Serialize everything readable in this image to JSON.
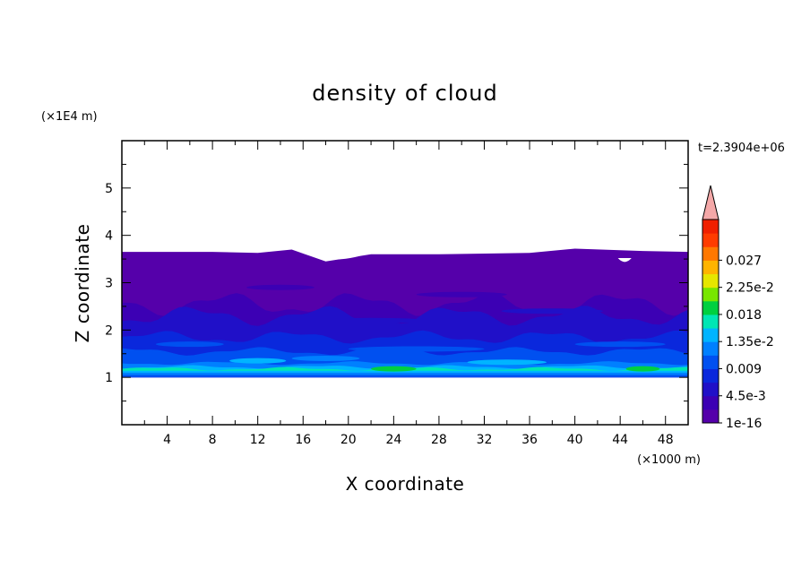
{
  "chart_data": {
    "type": "filled-contour",
    "title": "density of cloud",
    "xlabel": "X coordinate",
    "ylabel": "Z coordinate",
    "x_unit": "(×1000 m)",
    "y_unit": "(×1E4 m)",
    "time_label": "t=2.3904e+06",
    "xlim": [
      0,
      50
    ],
    "ylim": [
      0,
      6
    ],
    "x_ticks": [
      4,
      8,
      12,
      16,
      20,
      24,
      28,
      32,
      36,
      40,
      44,
      48
    ],
    "x_tick_labels": [
      "4",
      "8",
      "12",
      "16",
      "20",
      "24",
      "28",
      "32",
      "36",
      "40",
      "44",
      "48"
    ],
    "y_ticks": [
      1,
      2,
      3,
      4,
      5
    ],
    "y_tick_labels": [
      "1",
      "2",
      "3",
      "4",
      "5"
    ],
    "contour_levels": [
      1e-16,
      0.00225,
      0.0045,
      0.00675,
      0.009,
      0.01125,
      0.0135,
      0.01575,
      0.018,
      0.02025,
      0.0225,
      0.02475,
      0.027,
      0.02925
    ],
    "colorbar_labels": [
      "1e-16",
      "4.5e-3",
      "0.009",
      "1.35e-2",
      "0.018",
      "2.25e-2",
      "0.027"
    ],
    "colorbar_colors": [
      "#5500aa",
      "#3c00b4",
      "#2010c8",
      "#0a28dc",
      "#0050f0",
      "#0080ff",
      "#00b4ff",
      "#00e6b4",
      "#00d040",
      "#78e600",
      "#e6e600",
      "#ffb400",
      "#ff7800",
      "#ff3c00",
      "#f02000"
    ],
    "colorbar_extend_color": "#f4a8a8",
    "field_bands": [
      {
        "level": 0,
        "z_bottom": 1.0,
        "z_top": 3.65
      },
      {
        "level": 1,
        "z_bottom": 1.0,
        "z_top": 2.55
      },
      {
        "level": 2,
        "z_bottom": 1.0,
        "z_top": 2.3
      },
      {
        "level": 3,
        "z_bottom": 1.0,
        "z_top": 1.85
      },
      {
        "level": 4,
        "z_bottom": 1.0,
        "z_top": 1.55
      },
      {
        "level": 5,
        "z_bottom": 1.05,
        "z_top": 1.3
      },
      {
        "level": 6,
        "z_bottom": 1.1,
        "z_top": 1.22
      },
      {
        "level": 7,
        "z_bottom": 1.14,
        "z_top": 1.18
      }
    ],
    "top_boundary": [
      [
        0,
        3.65
      ],
      [
        8,
        3.65
      ],
      [
        12,
        3.63
      ],
      [
        15,
        3.7
      ],
      [
        18,
        3.45
      ],
      [
        22,
        3.6
      ],
      [
        28,
        3.6
      ],
      [
        36,
        3.63
      ],
      [
        40,
        3.72
      ],
      [
        46,
        3.67
      ],
      [
        50,
        3.65
      ]
    ],
    "gaps": [
      {
        "x": [
          15.2,
          22.5
        ],
        "z": [
          3.4,
          3.7
        ]
      },
      {
        "x": [
          43.8,
          45.0
        ],
        "z": [
          3.47,
          3.52
        ]
      }
    ],
    "data_bottom": 1.0,
    "grid": false
  }
}
